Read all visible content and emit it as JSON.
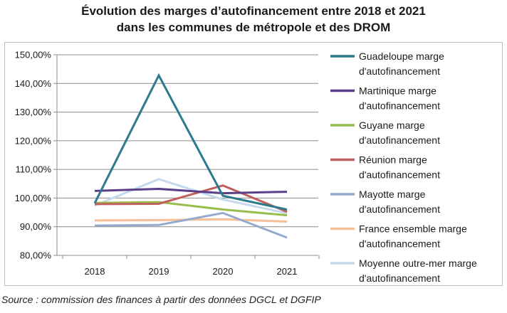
{
  "chart_data": {
    "type": "line",
    "title": [
      "Évolution des marges d’autofinancement entre 2018 et 2021",
      "dans les communes de métropole et des DROM"
    ],
    "x": [
      "2018",
      "2019",
      "2020",
      "2021"
    ],
    "ylim": [
      80,
      150
    ],
    "ytick_labels": [
      "80,00%",
      "90,00%",
      "100,00%",
      "110,00%",
      "120,00%",
      "130,00%",
      "140,00%",
      "150,00%"
    ],
    "ytick_values": [
      80,
      90,
      100,
      110,
      120,
      130,
      140,
      150
    ],
    "grid": "horizontal",
    "legend_position": "right",
    "series": [
      {
        "name": [
          "Guadeloupe marge",
          "d'autofinancement"
        ],
        "values": [
          98.2,
          142.8,
          100.8,
          96.0
        ],
        "color": "#2b7a8e"
      },
      {
        "name": [
          "Martinique marge",
          "d'autofinancement"
        ],
        "values": [
          102.5,
          103.2,
          101.7,
          102.2
        ],
        "color": "#5b3e8a"
      },
      {
        "name": [
          "Guyane marge",
          "d'autofinancement"
        ],
        "values": [
          98.3,
          98.6,
          96.0,
          94.0
        ],
        "color": "#97be4c"
      },
      {
        "name": [
          "Réunion marge",
          "d'autofinancement"
        ],
        "values": [
          97.9,
          98.0,
          104.4,
          95.2
        ],
        "color": "#c0605c"
      },
      {
        "name": [
          "Mayotte marge",
          "d'autofinancement"
        ],
        "values": [
          90.4,
          90.6,
          94.8,
          86.2
        ],
        "color": "#94a9cc"
      },
      {
        "name": [
          "France ensemble  marge",
          "d'autofinancement"
        ],
        "values": [
          92.2,
          92.3,
          92.6,
          91.8
        ],
        "color": "#f5bf98"
      },
      {
        "name": [
          "Moyenne outre-mer marge",
          "d'autofinancement"
        ],
        "values": [
          97.4,
          106.6,
          99.5,
          94.7
        ],
        "color": "#c6d9ec"
      }
    ]
  },
  "source": "Source : commission des finances à partir des données DGCL et DGFIP"
}
